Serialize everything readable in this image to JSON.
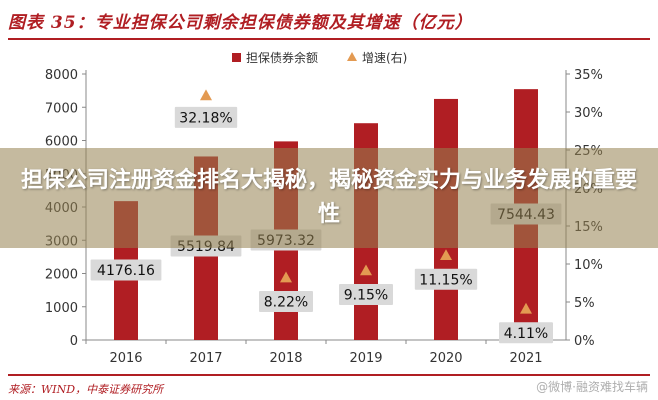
{
  "figure_title": "图表 35：专业担保公司剩余担保债券额及其增速（亿元）",
  "overlay_headline": "担保公司注册资金排名大揭秘，揭秘资金实力与业务发展的重要性",
  "source_note": "来源：WIND，中泰证券研究所",
  "watermark": "@微博·融资难找车辆",
  "colors": {
    "bar": "#b01e23",
    "marker": "#e39a52",
    "title": "#b01e23",
    "axis": "#888888",
    "label_box": "#d9d9d9"
  },
  "chart_data": {
    "type": "bar",
    "categories": [
      "2016",
      "2017",
      "2018",
      "2019",
      "2020",
      "2021"
    ],
    "series": [
      {
        "name": "担保债券余额",
        "type": "bar",
        "axis": "left",
        "values": [
          4176.16,
          5519.84,
          5973.32,
          6520.0,
          7250.0,
          7544.43
        ],
        "visible_labels": [
          "4176.16",
          "5519.84",
          "5973.32",
          null,
          null,
          "7544.43"
        ]
      },
      {
        "name": "增速(右)",
        "type": "scatter",
        "axis": "right",
        "values": [
          null,
          32.18,
          8.22,
          9.15,
          11.15,
          4.11
        ],
        "visible_labels": [
          null,
          "32.18%",
          "8.22%",
          "9.15%",
          "11.15%",
          "4.11%"
        ]
      }
    ],
    "y_left": {
      "range": [
        0,
        8000
      ],
      "ticks": [
        "0",
        "1000",
        "2000",
        "3000",
        "4000",
        "5000",
        "6000",
        "7000",
        "8000"
      ]
    },
    "y_right": {
      "range": [
        0,
        35
      ],
      "ticks": [
        "0%",
        "5%",
        "10%",
        "15%",
        "20%",
        "25%",
        "30%",
        "35%"
      ]
    },
    "grid": false,
    "legend_position": "top-center"
  }
}
